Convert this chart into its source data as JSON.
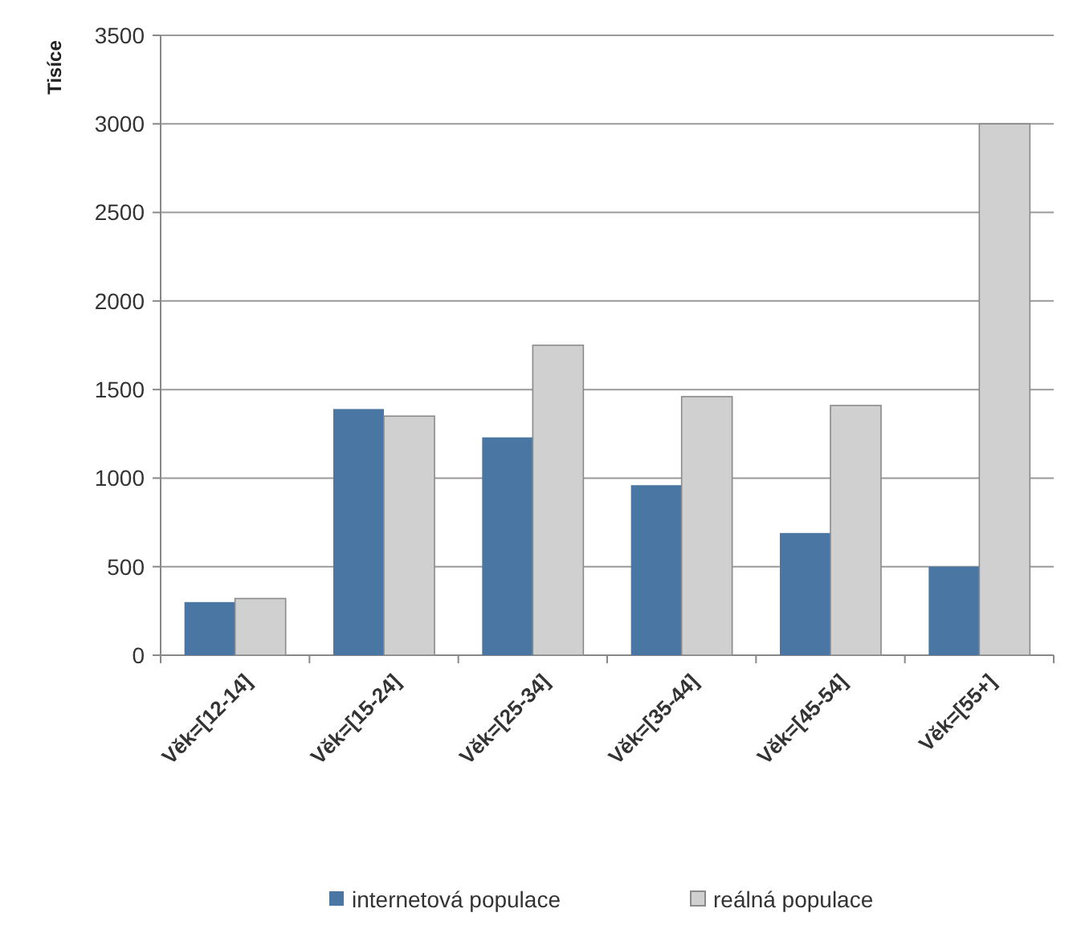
{
  "chart_data": {
    "type": "bar",
    "ylabel": "Tisíce",
    "categories": [
      "Věk=[12-14]",
      "Věk=[15-24]",
      "Věk=[25-34]",
      "Věk=[35-44]",
      "Věk=[45-54]",
      "Věk=[55+]"
    ],
    "series": [
      {
        "name": "internetová populace",
        "color": "#4a76a4",
        "values": [
          300,
          1390,
          1230,
          960,
          690,
          500
        ]
      },
      {
        "name": "reálná populace",
        "color": "#d0d0d0",
        "values": [
          320,
          1350,
          1750,
          1460,
          1410,
          3000
        ]
      }
    ],
    "ylim": [
      0,
      3500
    ],
    "yticks": [
      0,
      500,
      1000,
      1500,
      2000,
      2500,
      3000,
      3500
    ],
    "grid": "y",
    "legend": "bottom"
  }
}
